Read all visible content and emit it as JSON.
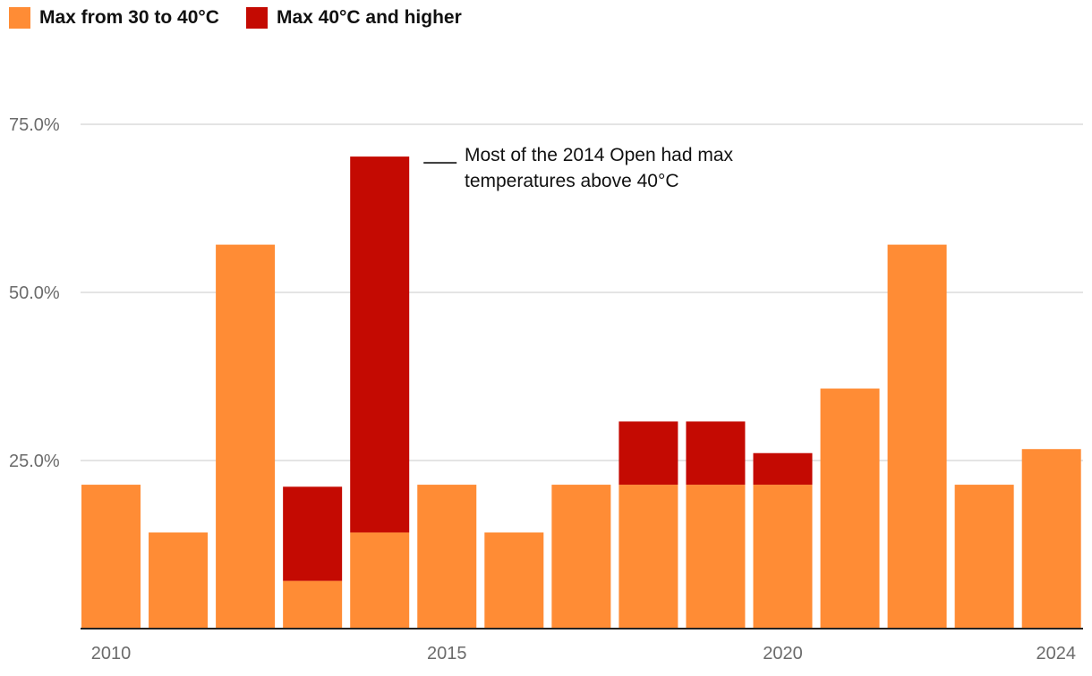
{
  "chart_data": {
    "type": "bar",
    "stacked": true,
    "title": "",
    "xlabel": "",
    "ylabel": "",
    "categories": [
      "2010",
      "2011",
      "2012",
      "2013",
      "2014",
      "2015",
      "2016",
      "2017",
      "2018",
      "2019",
      "2020",
      "2021",
      "2022",
      "2023",
      "2024"
    ],
    "x_tick_labels": [
      "2010",
      "2015",
      "2020",
      "2024"
    ],
    "series": [
      {
        "name": "Max from 30 to 40°C",
        "color": "#FF8C35",
        "values": [
          21.4,
          14.3,
          57.1,
          7.1,
          14.3,
          21.4,
          14.3,
          21.4,
          21.4,
          21.4,
          21.4,
          35.7,
          57.1,
          21.4,
          26.7
        ]
      },
      {
        "name": "Max 40°C and higher",
        "color": "#C40A02",
        "values": [
          0,
          0,
          0,
          14.0,
          55.9,
          0,
          0,
          0,
          9.4,
          9.4,
          4.7,
          0,
          0,
          0,
          0
        ]
      }
    ],
    "ylim": [
      0,
      75
    ],
    "y_ticks": [
      {
        "value": 25,
        "label": "25.0%"
      },
      {
        "value": 50,
        "label": "50.0%"
      },
      {
        "value": 75,
        "label": "75.0%"
      }
    ],
    "gridlines": true,
    "legend_position": "top-left",
    "annotation": {
      "category": "2014",
      "lines": [
        "Most of the 2014 Open had max",
        "temperatures above 40°C"
      ]
    }
  },
  "colors": {
    "grid": "#d4d4d4",
    "axis": "#222222",
    "tick_text": "#6b6b6b"
  }
}
